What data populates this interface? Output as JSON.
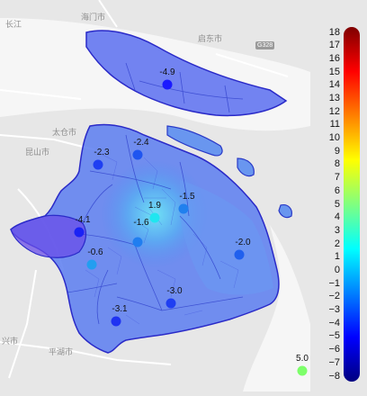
{
  "basemap_labels": {
    "changjiang": "长江",
    "haimen": "海门市",
    "qidong": "启东市",
    "g_road": "G328",
    "taicang": "太仓市",
    "kunshan": "昆山市",
    "jiaxing": "兴市",
    "pinghu": "平湖市"
  },
  "stations": [
    {
      "id": "chongming",
      "value": "-4.9",
      "color": "#1a1aff"
    },
    {
      "id": "jiading",
      "value": "-2.3",
      "color": "#1f3ff2"
    },
    {
      "id": "baoshan",
      "value": "-2.4",
      "color": "#1f55f0"
    },
    {
      "id": "xujiahui",
      "value": "1.9",
      "color": "#1fe6f0"
    },
    {
      "id": "pudong-north",
      "value": "-1.5",
      "color": "#2080ee"
    },
    {
      "id": "qingpu",
      "value": "-4.1",
      "color": "#1a22f5"
    },
    {
      "id": "minhang",
      "value": "-1.6",
      "color": "#207ef0"
    },
    {
      "id": "songjiang",
      "value": "-0.6",
      "color": "#229ef0"
    },
    {
      "id": "nanhui",
      "value": "-2.0",
      "color": "#2060ee"
    },
    {
      "id": "fengxian",
      "value": "-3.0",
      "color": "#1f3ff2"
    },
    {
      "id": "jinshan",
      "value": "-3.1",
      "color": "#1f33f2"
    },
    {
      "id": "offshore",
      "value": "5.0",
      "color": "#7dff6a"
    }
  ],
  "colorbar": {
    "min": -8,
    "max": 18,
    "ticks": [
      "18",
      "17",
      "16",
      "15",
      "14",
      "13",
      "12",
      "11",
      "10",
      "9",
      "8",
      "7",
      "6",
      "5",
      "4",
      "3",
      "2",
      "1",
      "0",
      "−1",
      "−2",
      "−3",
      "−4",
      "−5",
      "−6",
      "−7",
      "−8"
    ],
    "stops": [
      "#00007f",
      "#0000ff",
      "#0080ff",
      "#00ffff",
      "#80ff80",
      "#ffff00",
      "#ff8000",
      "#ff0000",
      "#7f0000"
    ]
  }
}
